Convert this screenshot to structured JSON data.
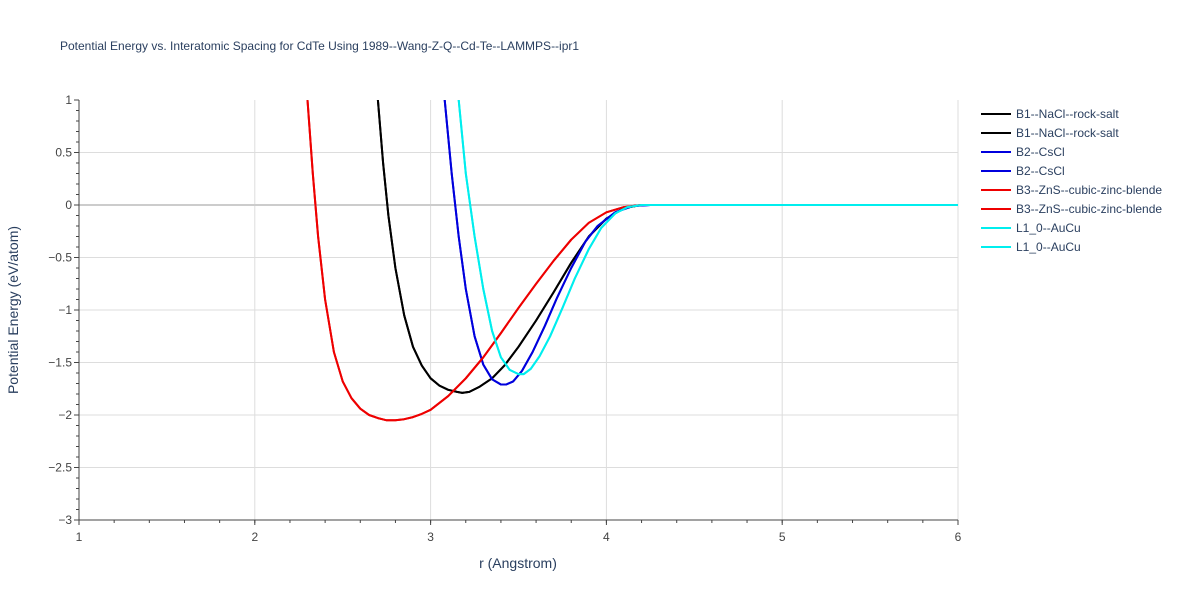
{
  "chart_data": {
    "type": "line",
    "title": "Potential Energy vs. Interatomic Spacing for CdTe Using 1989--Wang-Z-Q--Cd-Te--LAMMPS--ipr1",
    "xlabel": "r (Angstrom)",
    "ylabel": "Potential Energy (eV/atom)",
    "xlim": [
      1,
      6
    ],
    "ylim": [
      -3,
      1
    ],
    "x_ticks": [
      "1",
      "2",
      "3",
      "4",
      "5",
      "6"
    ],
    "y_ticks": [
      "1",
      "0.5",
      "0",
      "−0.5",
      "−1",
      "−1.5",
      "−2",
      "−2.5",
      "−3"
    ],
    "grid": true,
    "legend_position": "top-right",
    "series": [
      {
        "name": "B1--NaCl--rock-salt",
        "color": "#000000",
        "x": [
          2.7,
          2.73,
          2.76,
          2.8,
          2.85,
          2.9,
          2.95,
          3.0,
          3.05,
          3.1,
          3.15,
          3.18,
          3.22,
          3.28,
          3.35,
          3.42,
          3.5,
          3.6,
          3.7,
          3.8,
          3.9,
          4.0,
          4.1,
          4.2,
          4.3,
          4.5,
          5.0,
          6.0
        ],
        "y": [
          1.0,
          0.4,
          -0.1,
          -0.6,
          -1.05,
          -1.35,
          -1.53,
          -1.65,
          -1.72,
          -1.76,
          -1.78,
          -1.79,
          -1.78,
          -1.73,
          -1.65,
          -1.53,
          -1.35,
          -1.1,
          -0.83,
          -0.55,
          -0.3,
          -0.13,
          -0.03,
          0.0,
          0.0,
          0.0,
          0.0,
          0.0
        ]
      },
      {
        "name": "B1--NaCl--rock-salt",
        "color": "#000000",
        "x": [
          2.7,
          2.73,
          2.76,
          2.8,
          2.85,
          2.9,
          2.95,
          3.0,
          3.05,
          3.1,
          3.15,
          3.18,
          3.22,
          3.28,
          3.35,
          3.42,
          3.5,
          3.6,
          3.7,
          3.8,
          3.9,
          4.0,
          4.1,
          4.2,
          4.3,
          4.5,
          5.0,
          6.0
        ],
        "y": [
          1.0,
          0.4,
          -0.1,
          -0.6,
          -1.05,
          -1.35,
          -1.53,
          -1.65,
          -1.72,
          -1.76,
          -1.78,
          -1.79,
          -1.78,
          -1.73,
          -1.65,
          -1.53,
          -1.35,
          -1.1,
          -0.83,
          -0.55,
          -0.3,
          -0.13,
          -0.03,
          0.0,
          0.0,
          0.0,
          0.0,
          0.0
        ]
      },
      {
        "name": "B2--CsCl",
        "color": "#0000dd",
        "x": [
          3.08,
          3.12,
          3.16,
          3.2,
          3.25,
          3.3,
          3.35,
          3.4,
          3.43,
          3.47,
          3.52,
          3.58,
          3.65,
          3.72,
          3.8,
          3.88,
          3.95,
          4.05,
          4.15,
          4.25,
          4.4,
          5.0,
          6.0
        ],
        "y": [
          1.0,
          0.3,
          -0.3,
          -0.8,
          -1.25,
          -1.52,
          -1.66,
          -1.71,
          -1.71,
          -1.68,
          -1.58,
          -1.4,
          -1.15,
          -0.88,
          -0.6,
          -0.35,
          -0.2,
          -0.07,
          -0.01,
          0.0,
          0.0,
          0.0,
          0.0
        ]
      },
      {
        "name": "B2--CsCl",
        "color": "#0000dd",
        "x": [
          3.08,
          3.12,
          3.16,
          3.2,
          3.25,
          3.3,
          3.35,
          3.4,
          3.43,
          3.47,
          3.52,
          3.58,
          3.65,
          3.72,
          3.8,
          3.88,
          3.95,
          4.05,
          4.15,
          4.25,
          4.4,
          5.0,
          6.0
        ],
        "y": [
          1.0,
          0.3,
          -0.3,
          -0.8,
          -1.25,
          -1.52,
          -1.66,
          -1.71,
          -1.71,
          -1.68,
          -1.58,
          -1.4,
          -1.15,
          -0.88,
          -0.6,
          -0.35,
          -0.2,
          -0.07,
          -0.01,
          0.0,
          0.0,
          0.0,
          0.0
        ]
      },
      {
        "name": "B3--ZnS--cubic-zinc-blende",
        "color": "#ee0000",
        "x": [
          2.3,
          2.33,
          2.36,
          2.4,
          2.45,
          2.5,
          2.55,
          2.6,
          2.65,
          2.7,
          2.75,
          2.8,
          2.85,
          2.9,
          2.95,
          3.0,
          3.1,
          3.2,
          3.3,
          3.4,
          3.5,
          3.6,
          3.7,
          3.8,
          3.9,
          4.0,
          4.1,
          4.2,
          4.3,
          4.5,
          5.0,
          6.0
        ],
        "y": [
          1.0,
          0.3,
          -0.3,
          -0.9,
          -1.4,
          -1.68,
          -1.84,
          -1.94,
          -2.0,
          -2.03,
          -2.05,
          -2.05,
          -2.04,
          -2.02,
          -1.99,
          -1.95,
          -1.82,
          -1.65,
          -1.45,
          -1.22,
          -0.98,
          -0.75,
          -0.53,
          -0.33,
          -0.17,
          -0.07,
          -0.02,
          0.0,
          0.0,
          0.0,
          0.0,
          0.0
        ]
      },
      {
        "name": "B3--ZnS--cubic-zinc-blende",
        "color": "#ee0000",
        "x": [
          2.3,
          2.33,
          2.36,
          2.4,
          2.45,
          2.5,
          2.55,
          2.6,
          2.65,
          2.7,
          2.75,
          2.8,
          2.85,
          2.9,
          2.95,
          3.0,
          3.1,
          3.2,
          3.3,
          3.4,
          3.5,
          3.6,
          3.7,
          3.8,
          3.9,
          4.0,
          4.1,
          4.2,
          4.3,
          4.5,
          5.0,
          6.0
        ],
        "y": [
          1.0,
          0.3,
          -0.3,
          -0.9,
          -1.4,
          -1.68,
          -1.84,
          -1.94,
          -2.0,
          -2.03,
          -2.05,
          -2.05,
          -2.04,
          -2.02,
          -1.99,
          -1.95,
          -1.82,
          -1.65,
          -1.45,
          -1.22,
          -0.98,
          -0.75,
          -0.53,
          -0.33,
          -0.17,
          -0.07,
          -0.02,
          0.0,
          0.0,
          0.0,
          0.0,
          0.0
        ]
      },
      {
        "name": "L1_0--AuCu",
        "color": "#00eeee",
        "x": [
          3.16,
          3.2,
          3.25,
          3.3,
          3.35,
          3.4,
          3.45,
          3.5,
          3.53,
          3.57,
          3.62,
          3.68,
          3.75,
          3.82,
          3.9,
          3.97,
          4.05,
          4.12,
          4.2,
          4.3,
          4.5,
          5.0,
          6.0
        ],
        "y": [
          1.0,
          0.3,
          -0.3,
          -0.8,
          -1.2,
          -1.45,
          -1.57,
          -1.61,
          -1.61,
          -1.56,
          -1.44,
          -1.25,
          -0.98,
          -0.7,
          -0.42,
          -0.22,
          -0.08,
          -0.02,
          0.0,
          0.0,
          0.0,
          0.0,
          0.0
        ]
      },
      {
        "name": "L1_0--AuCu",
        "color": "#00eeee",
        "x": [
          3.16,
          3.2,
          3.25,
          3.3,
          3.35,
          3.4,
          3.45,
          3.5,
          3.53,
          3.57,
          3.62,
          3.68,
          3.75,
          3.82,
          3.9,
          3.97,
          4.05,
          4.12,
          4.2,
          4.3,
          4.5,
          5.0,
          6.0
        ],
        "y": [
          1.0,
          0.3,
          -0.3,
          -0.8,
          -1.2,
          -1.45,
          -1.57,
          -1.61,
          -1.61,
          -1.56,
          -1.44,
          -1.25,
          -0.98,
          -0.7,
          -0.42,
          -0.22,
          -0.08,
          -0.02,
          0.0,
          0.0,
          0.0,
          0.0,
          0.0
        ]
      }
    ]
  }
}
